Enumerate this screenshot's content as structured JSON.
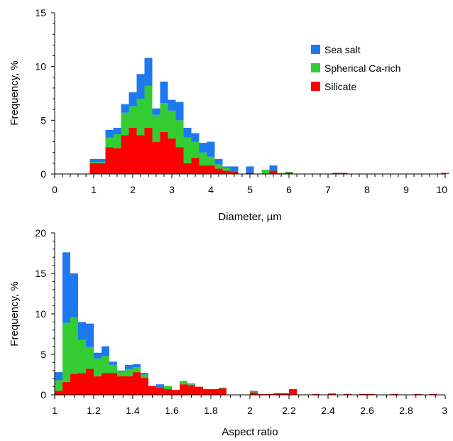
{
  "chart_data": [
    {
      "type": "bar",
      "stacked": true,
      "xlabel": "Diameter, µm",
      "ylabel": "Frequency, %",
      "xlim": [
        0,
        10
      ],
      "ylim": [
        0,
        15
      ],
      "xticks": [
        0,
        1,
        2,
        3,
        4,
        5,
        6,
        7,
        8,
        9,
        10
      ],
      "yticks": [
        0,
        5,
        10,
        15
      ],
      "bin_width": 0.2,
      "legend_position": "upper-right",
      "bin_starts": [
        0.9,
        1.1,
        1.3,
        1.5,
        1.7,
        1.9,
        2.1,
        2.3,
        2.5,
        2.7,
        2.9,
        3.1,
        3.3,
        3.5,
        3.7,
        3.9,
        4.1,
        4.3,
        4.5,
        4.7,
        4.9,
        5.1,
        5.3,
        5.5,
        5.7,
        5.9,
        7.1,
        7.3,
        9.9
      ],
      "series": [
        {
          "name": "Silicate",
          "color": "#ff0000",
          "values": [
            1.0,
            1.0,
            2.5,
            2.4,
            3.6,
            4.3,
            3.6,
            4.3,
            3.0,
            3.9,
            3.3,
            2.5,
            1.0,
            1.5,
            0.8,
            0.8,
            0.5,
            0.3,
            0.2,
            0.0,
            0.1,
            0.0,
            0.0,
            0.3,
            0.0,
            0.1,
            0.1,
            0.1,
            0.1
          ]
        },
        {
          "name": "Spherical Ca-rich",
          "color": "#33cc33",
          "values": [
            0.1,
            0.1,
            0.9,
            1.3,
            2.1,
            2.0,
            3.4,
            3.9,
            2.5,
            2.7,
            2.6,
            2.5,
            2.4,
            1.5,
            1.2,
            0.8,
            0.4,
            0.3,
            0.0,
            0.0,
            0.0,
            0.0,
            0.4,
            0.0,
            0.1,
            0.1,
            0.0,
            0.0,
            0.0
          ]
        },
        {
          "name": "Sea salt",
          "color": "#1e78f0",
          "values": [
            0.3,
            0.3,
            0.7,
            0.6,
            0.8,
            1.3,
            2.3,
            2.6,
            0.6,
            2.0,
            1.0,
            1.7,
            0.9,
            0.8,
            0.9,
            1.4,
            0.5,
            0.1,
            0.5,
            0.0,
            0.6,
            0.0,
            0.0,
            0.5,
            0.0,
            0.0,
            0.0,
            0.0,
            0.0
          ]
        }
      ]
    },
    {
      "type": "bar",
      "stacked": true,
      "xlabel": "Aspect ratio",
      "ylabel": "Frequency, %",
      "xlim": [
        1,
        3
      ],
      "ylim": [
        0,
        20
      ],
      "xticks": [
        "1",
        "1.2",
        "1.4",
        "1.6",
        "1.8",
        "2",
        "2.2",
        "2.4",
        "2.6",
        "2.8",
        "3"
      ],
      "yticks": [
        0,
        5,
        10,
        15,
        20
      ],
      "bin_width": 0.04,
      "bin_starts": [
        1.0,
        1.04,
        1.08,
        1.12,
        1.16,
        1.2,
        1.24,
        1.28,
        1.32,
        1.36,
        1.4,
        1.44,
        1.48,
        1.52,
        1.56,
        1.6,
        1.64,
        1.68,
        1.72,
        1.76,
        1.8,
        1.84,
        1.88,
        1.96,
        2.0,
        2.04,
        2.08,
        2.12,
        2.16,
        2.2,
        2.24,
        2.28,
        2.32,
        2.36,
        2.4,
        2.44,
        2.48,
        2.52,
        2.56,
        2.6,
        2.64,
        2.68,
        2.72,
        2.76,
        2.8,
        2.84,
        2.88,
        2.92,
        2.96
      ],
      "series": [
        {
          "name": "Silicate",
          "color": "#ff0000",
          "values": [
            0.5,
            1.6,
            2.6,
            2.7,
            3.2,
            2.3,
            2.7,
            2.7,
            2.3,
            2.3,
            2.8,
            2.1,
            1.1,
            0.9,
            0.7,
            0.6,
            1.3,
            1.2,
            1.0,
            0.7,
            0.7,
            0.8,
            0.0,
            0.0,
            0.3,
            0.1,
            0.1,
            0.2,
            0.2,
            0.7,
            0.0,
            0.0,
            0.1,
            0.0,
            0.1,
            0.0,
            0.1,
            0.0,
            0.1,
            0.1,
            0.0,
            0.0,
            0.1,
            0.0,
            0.0,
            0.1,
            0.0,
            0.1,
            0.0
          ]
        },
        {
          "name": "Spherical Ca-rich",
          "color": "#33cc33",
          "values": [
            1.3,
            7.3,
            7.0,
            4.1,
            2.7,
            2.2,
            2.1,
            1.0,
            0.6,
            0.9,
            0.6,
            0.4,
            0.0,
            0.0,
            0.4,
            0.0,
            0.3,
            0.1,
            0.0,
            0.0,
            0.0,
            0.1,
            0.0,
            0.0,
            0.1,
            0.0,
            0.0,
            0.0,
            0.0,
            0.0,
            0.0,
            0.0,
            0.0,
            0.0,
            0.0,
            0.0,
            0.0,
            0.0,
            0.0,
            0.0,
            0.0,
            0.0,
            0.0,
            0.0,
            0.0,
            0.0,
            0.0,
            0.0,
            0.0
          ]
        },
        {
          "name": "Sea salt",
          "color": "#1e78f0",
          "values": [
            1.0,
            8.7,
            5.4,
            2.2,
            2.9,
            0.7,
            1.2,
            0.4,
            0.1,
            0.5,
            0.4,
            0.2,
            0.0,
            0.4,
            0.0,
            0.0,
            0.1,
            0.1,
            0.0,
            0.0,
            0.0,
            0.0,
            0.0,
            0.0,
            0.1,
            0.0,
            0.0,
            0.0,
            0.0,
            0.0,
            0.0,
            0.0,
            0.0,
            0.0,
            0.1,
            0.0,
            0.0,
            0.0,
            0.0,
            0.0,
            0.0,
            0.0,
            0.0,
            0.0,
            0.0,
            0.0,
            0.0,
            0.0,
            0.0
          ]
        }
      ]
    }
  ],
  "legend": {
    "items": [
      {
        "label": "Sea salt",
        "color": "#1e78f0"
      },
      {
        "label": "Spherical Ca-rich",
        "color": "#33cc33"
      },
      {
        "label": "Silicate",
        "color": "#ff0000"
      }
    ]
  }
}
